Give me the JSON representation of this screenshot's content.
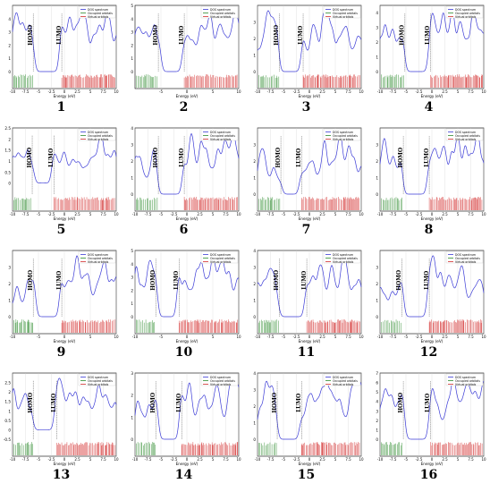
{
  "legend": {
    "dos": "DOS spectrum",
    "occupied": "Occupied orbitals",
    "virtual": "Virtual orbitals"
  },
  "colors": {
    "dos": "#3b3bd6",
    "occupied": "#2e8b2e",
    "virtual": "#d43030",
    "grid": "#cfcfcf"
  },
  "labels": {
    "homo": "HOMO",
    "lumo": "LUMO",
    "xlabel": "Energy (eV)"
  },
  "chart_data": [
    {
      "type": "line",
      "id": "1",
      "xlim": [
        -10,
        10
      ],
      "ylim": [
        0,
        5
      ],
      "yticks": [
        0,
        1,
        2,
        3,
        4
      ],
      "xticks": [
        -10,
        -7.5,
        -5,
        -2.5,
        0,
        2.5,
        5,
        7.5,
        10
      ],
      "homo": -6.0,
      "lumo": -0.5
    },
    {
      "type": "line",
      "id": "2",
      "xlim": [
        -10,
        10
      ],
      "ylim": [
        0,
        5
      ],
      "yticks": [
        0,
        1,
        2,
        3,
        4,
        5
      ],
      "xticks": [
        -5,
        0,
        5,
        10
      ],
      "homo": -5.5,
      "lumo": -0.5
    },
    {
      "type": "line",
      "id": "3",
      "xlim": [
        -10,
        10
      ],
      "ylim": [
        0,
        4
      ],
      "yticks": [
        0,
        1,
        2,
        3
      ],
      "xticks": [
        -10,
        -7.5,
        -5,
        -2.5,
        0,
        2.5,
        5,
        7.5,
        10
      ],
      "homo": -5.8,
      "lumo": -1.2
    },
    {
      "type": "line",
      "id": "4",
      "xlim": [
        -10,
        10
      ],
      "ylim": [
        0,
        4.5
      ],
      "yticks": [
        0,
        1,
        2,
        3,
        4
      ],
      "xticks": [
        -10,
        -7.5,
        -5,
        -2.5,
        0,
        2.5,
        5,
        7.5,
        10
      ],
      "homo": -5.2,
      "lumo": -0.3
    },
    {
      "type": "line",
      "id": "5",
      "xlim": [
        -10,
        10
      ],
      "ylim": [
        -0.5,
        2.5
      ],
      "yticks": [
        0,
        0.5,
        1,
        1.5,
        2,
        2.5
      ],
      "xticks": [
        -10,
        -7.5,
        -5,
        -2.5,
        0,
        2.5,
        5,
        7.5,
        10
      ],
      "homo": -6.2,
      "lumo": -2.0
    },
    {
      "type": "line",
      "id": "6",
      "xlim": [
        -10,
        10
      ],
      "ylim": [
        0,
        4
      ],
      "yticks": [
        0,
        1,
        2,
        3,
        4
      ],
      "xticks": [
        -10,
        -7.5,
        -5,
        -2.5,
        0,
        2.5,
        5,
        7.5,
        10
      ],
      "homo": -5.5,
      "lumo": -0.5
    },
    {
      "type": "line",
      "id": "7",
      "xlim": [
        -10,
        10
      ],
      "ylim": [
        0,
        4
      ],
      "yticks": [
        0,
        1,
        2,
        3
      ],
      "xticks": [
        -10,
        -7.5,
        -5,
        -2.5,
        0,
        2.5,
        5,
        7.5,
        10
      ],
      "homo": -5.5,
      "lumo": -1.5
    },
    {
      "type": "line",
      "id": "8",
      "xlim": [
        -10,
        10
      ],
      "ylim": [
        0,
        4
      ],
      "yticks": [
        0,
        1,
        2,
        3
      ],
      "xticks": [
        -10,
        -7.5,
        -5,
        -2.5,
        0,
        2.5,
        5,
        7.5,
        10
      ],
      "homo": -5.5,
      "lumo": -0.5
    },
    {
      "type": "line",
      "id": "9",
      "xlim": [
        -10,
        10
      ],
      "ylim": [
        0,
        4
      ],
      "yticks": [
        0,
        1,
        2,
        3
      ],
      "xticks": [
        -10,
        -5,
        0,
        5,
        10
      ],
      "homo": -6.0,
      "lumo": -0.5
    },
    {
      "type": "line",
      "id": "10",
      "xlim": [
        -10,
        10
      ],
      "ylim": [
        0,
        5
      ],
      "yticks": [
        0,
        1,
        2,
        3,
        4,
        5
      ],
      "xticks": [
        -10,
        -5,
        0,
        5,
        10
      ],
      "homo": -6.0,
      "lumo": -1.5
    },
    {
      "type": "line",
      "id": "11",
      "xlim": [
        -10,
        10
      ],
      "ylim": [
        0,
        4
      ],
      "yticks": [
        0,
        1,
        2,
        3,
        4
      ],
      "xticks": [
        -10,
        -7.5,
        -5,
        -2.5,
        0,
        2.5,
        5,
        7.5,
        10
      ],
      "homo": -5.8,
      "lumo": -0.5
    },
    {
      "type": "line",
      "id": "12",
      "xlim": [
        -10,
        10
      ],
      "ylim": [
        0,
        4
      ],
      "yticks": [
        0,
        1,
        2,
        3
      ],
      "xticks": [
        -10,
        -7.5,
        -5,
        -2.5,
        0,
        2.5,
        5,
        7.5,
        10
      ],
      "homo": -5.8,
      "lumo": -0.5
    },
    {
      "type": "line",
      "id": "13",
      "xlim": [
        -10,
        10
      ],
      "ylim": [
        -0.5,
        3
      ],
      "yticks": [
        -0.5,
        0,
        0.5,
        1,
        1.5,
        2,
        2.5
      ],
      "xticks": [
        -10,
        -7.5,
        -5,
        -2.5,
        0,
        2.5,
        5,
        7.5,
        10
      ],
      "homo": -6.0,
      "lumo": -1.5
    },
    {
      "type": "line",
      "id": "14",
      "xlim": [
        -10,
        10
      ],
      "ylim": [
        0,
        3
      ],
      "yticks": [
        0,
        1,
        2,
        3
      ],
      "xticks": [
        -10,
        -7.5,
        -5,
        -2.5,
        0,
        2.5,
        5,
        7.5,
        10
      ],
      "homo": -6.0,
      "lumo": -1.0
    },
    {
      "type": "line",
      "id": "15",
      "xlim": [
        -10,
        10
      ],
      "ylim": [
        0,
        4
      ],
      "yticks": [
        0,
        1,
        2,
        3,
        4
      ],
      "xticks": [
        -10,
        -7.5,
        -5,
        -2.5,
        0,
        2.5,
        5,
        7.5,
        10
      ],
      "homo": -6.2,
      "lumo": -1.5
    },
    {
      "type": "line",
      "id": "16",
      "xlim": [
        -10,
        10
      ],
      "ylim": [
        0,
        7
      ],
      "yticks": [
        0,
        1,
        2,
        3,
        4,
        5,
        6,
        7
      ],
      "xticks": [
        -10,
        -7.5,
        -5,
        -2.5,
        0,
        2.5,
        5,
        7.5,
        10
      ],
      "homo": -5.5,
      "lumo": -0.3
    }
  ]
}
